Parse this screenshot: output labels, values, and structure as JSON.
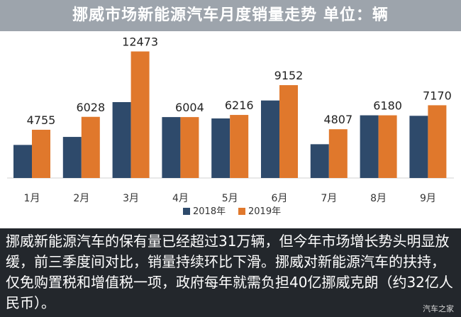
{
  "title": "挪威市场新能源汽车月度销量走势  单位：辆",
  "chart_data": {
    "type": "bar",
    "title": "挪威市场新能源汽车月度销量走势  单位：辆",
    "categories": [
      "1月",
      "2月",
      "3月",
      "4月",
      "5月",
      "6月",
      "7月",
      "8月",
      "9月"
    ],
    "series": [
      {
        "name": "2018年",
        "color": "#2e4a6b",
        "values": [
          3260,
          4050,
          7480,
          6004,
          5870,
          7640,
          3330,
          6180,
          6130
        ]
      },
      {
        "name": "2019年",
        "color": "#e0782c",
        "values": [
          4755,
          6028,
          12473,
          6004,
          6216,
          9152,
          4807,
          6180,
          7170
        ]
      }
    ],
    "data_labels": [
      "4755",
      "6028",
      "12473",
      "6004",
      "6216",
      "9152",
      "4807",
      "6180",
      "7170"
    ],
    "ylim": [
      0,
      13000
    ],
    "grid": false,
    "legend": "bottom-right"
  },
  "caption": "挪威新能源汽车的保有量已经超过31万辆，但今年市场增长势头明显放缓，前三季度间对比，销量持续环比下滑。挪威对新能源汽车的扶持，仅免购置税和增值税一项，政府每年就需负担40亿挪威克朗（约32亿人民币）。",
  "watermark": "汽车之家"
}
